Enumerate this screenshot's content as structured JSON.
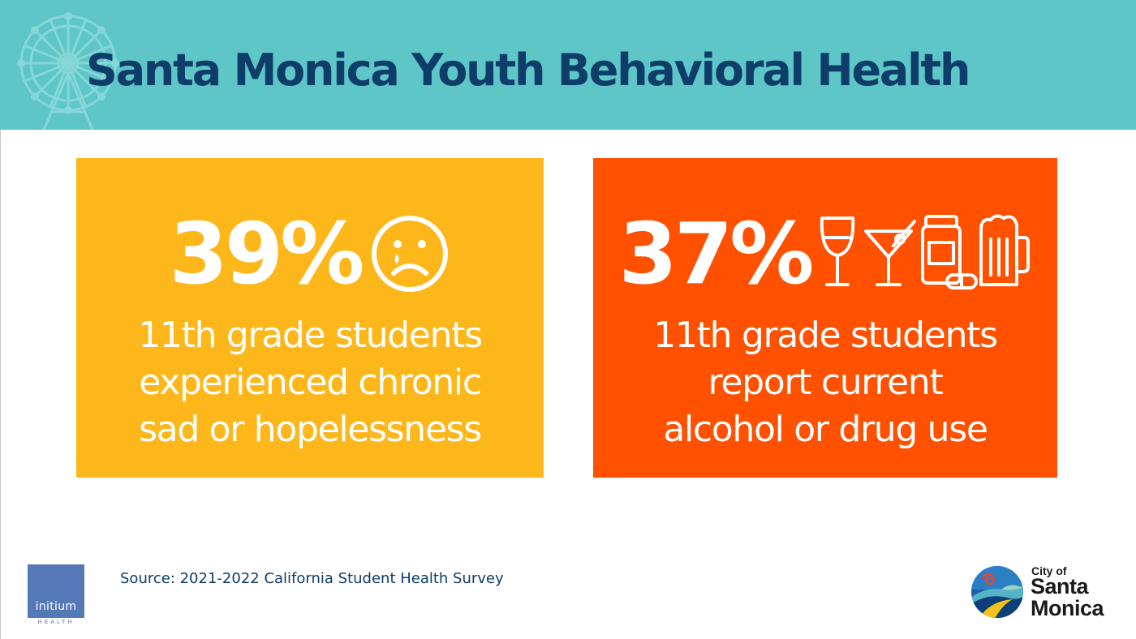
{
  "header": {
    "title": "Santa Monica Youth Behavioral Health",
    "background_color": "#5ec6c7",
    "title_color": "#0d3d68",
    "decoration_icon": "ferris-wheel-icon"
  },
  "cards": [
    {
      "stat": "39%",
      "icon": "sad-tear-face-icon",
      "lines": [
        "11th grade students",
        "experienced chronic",
        "sad or hopelessness"
      ],
      "background_color": "#fdb71b"
    },
    {
      "stat": "37%",
      "icons": [
        "wine-glass-icon",
        "martini-glass-icon",
        "pill-bottle-icon",
        "beer-mug-icon"
      ],
      "lines": [
        "11th grade students",
        "report current",
        "alcohol or drug use"
      ],
      "background_color": "#ff5100"
    }
  ],
  "footer": {
    "source": "Source: 2021-2022 California Student Health Survey",
    "source_color": "#0d3d68",
    "logo_left": {
      "name": "initium",
      "subtitle": "HEALTH",
      "box_color": "#5579b7",
      "subtitle_color": "#5579b7"
    },
    "logo_right": {
      "prefix": "City of",
      "name_lines": [
        "Santa",
        "Monica"
      ],
      "seal_icon": "city-seal-icon"
    }
  }
}
